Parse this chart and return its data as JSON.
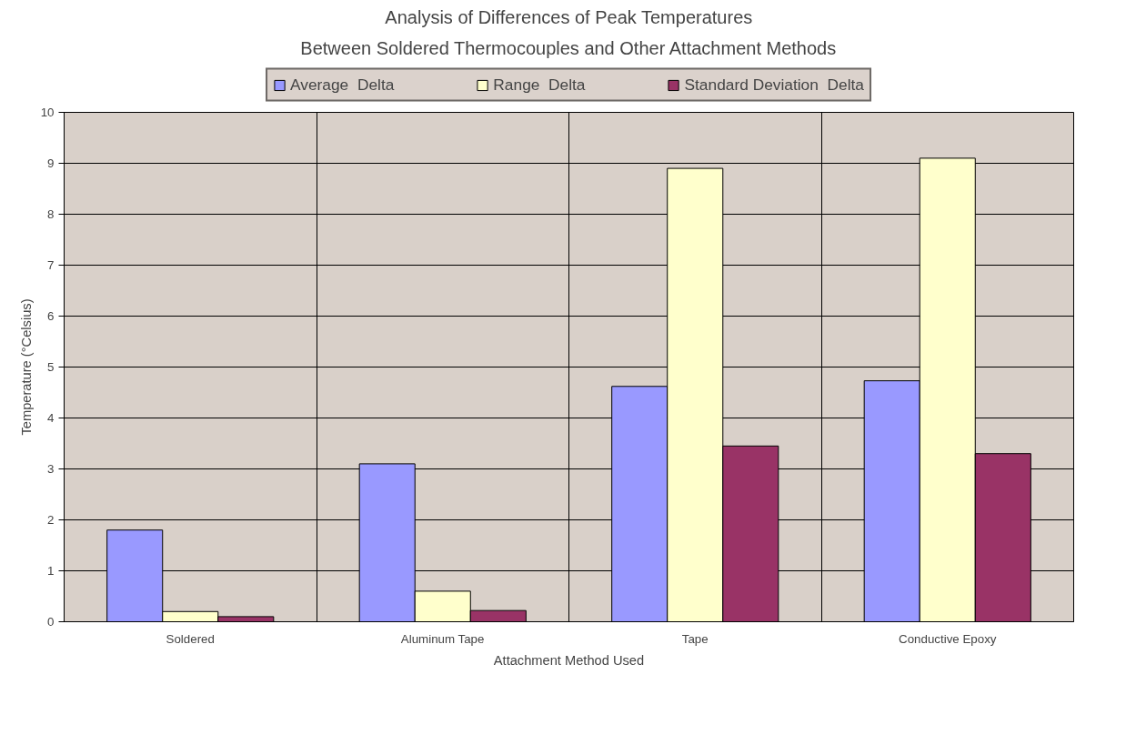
{
  "chart_data": {
    "type": "bar",
    "title": "Analysis of Differences of Peak Temperatures",
    "subtitle": "Between Soldered Thermocouples and Other Attachment Methods",
    "xlabel": "Attachment Method Used",
    "ylabel": "Temperature (°Celsius)",
    "categories": [
      "Soldered",
      "Aluminum Tape",
      "Tape",
      "Conductive Epoxy"
    ],
    "series": [
      {
        "name": "Average  Delta",
        "color": "#9999ff",
        "values": [
          1.8,
          3.1,
          4.62,
          4.73
        ]
      },
      {
        "name": "Range  Delta",
        "color": "#ffffcc",
        "values": [
          0.2,
          0.6,
          8.9,
          9.1
        ]
      },
      {
        "name": "Standard Deviation  Delta",
        "color": "#993366",
        "values": [
          0.1,
          0.22,
          3.45,
          3.3
        ]
      }
    ],
    "ylim": [
      0,
      10
    ],
    "yticks": [
      0,
      1,
      2,
      3,
      4,
      5,
      6,
      7,
      8,
      9,
      10
    ],
    "grid": true,
    "legend": "top"
  }
}
